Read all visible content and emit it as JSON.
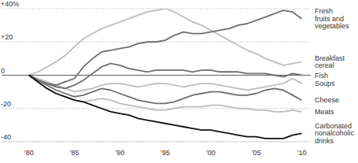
{
  "chart_data": {
    "type": "line",
    "x": [
      1980,
      1981,
      1982,
      1983,
      1984,
      1985,
      1986,
      1987,
      1988,
      1989,
      1990,
      1991,
      1992,
      1993,
      1994,
      1995,
      1996,
      1997,
      1998,
      1999,
      2000,
      2001,
      2002,
      2003,
      2004,
      2005,
      2006,
      2007,
      2008,
      2009,
      2010
    ],
    "xlim": [
      1977,
      2011
    ],
    "xticks": [
      {
        "value": 1980,
        "label": "’80"
      },
      {
        "value": 1985,
        "label": "’85"
      },
      {
        "value": 1990,
        "label": "’90"
      },
      {
        "value": 1995,
        "label": "’95"
      },
      {
        "value": 2000,
        "label": "’00"
      },
      {
        "value": 2005,
        "label": "’05"
      },
      {
        "value": 2010,
        "label": "’10"
      }
    ],
    "ylim": [
      -40,
      40
    ],
    "yticks": [
      {
        "value": 40,
        "label": "+40%"
      },
      {
        "value": 20,
        "label": "+20"
      },
      0,
      -20,
      -40
    ],
    "grid": true,
    "series": [
      {
        "name": "Fresh fruits and vegetables",
        "color": "#6e6e6e",
        "values": [
          0,
          -3,
          -5,
          -6,
          -4,
          -2,
          5,
          10,
          14,
          15,
          16,
          17,
          19,
          20,
          20,
          21,
          24,
          26,
          25,
          25,
          26,
          27,
          28,
          30,
          31,
          33,
          35,
          37,
          39,
          38,
          34
        ]
      },
      {
        "name": "Breakfast cereal",
        "color": "#bdbdbd",
        "values": [
          0,
          2,
          5,
          8,
          12,
          17,
          22,
          25,
          28,
          30,
          32,
          34,
          36,
          38,
          39,
          40,
          38,
          35,
          32,
          30,
          27,
          24,
          21,
          18,
          15,
          13,
          10,
          8,
          6,
          7,
          8
        ]
      },
      {
        "name": "Fish",
        "color": "#6e6e6e",
        "values": [
          0,
          -3,
          -5,
          -7,
          -8,
          -6,
          -3,
          1,
          5,
          7,
          6,
          4,
          3,
          2,
          3,
          3,
          3,
          3,
          2,
          3,
          3,
          2,
          2,
          2,
          1,
          1,
          1,
          0,
          -1,
          1,
          0
        ]
      },
      {
        "name": "Soups",
        "color": "#bdbdbd",
        "values": [
          0,
          -2,
          -4,
          -6,
          -8,
          -10,
          -9,
          -8,
          -6,
          -5,
          -5,
          -6,
          -7,
          -6,
          -5,
          -5,
          -6,
          -7,
          -6,
          -5,
          -5,
          -6,
          -7,
          -8,
          -9,
          -8,
          -7,
          -6,
          -5,
          -2,
          -5
        ]
      },
      {
        "name": "Cheese",
        "color": "#6e6e6e",
        "values": [
          0,
          -3,
          -6,
          -9,
          -11,
          -13,
          -12,
          -10,
          -8,
          -9,
          -11,
          -13,
          -15,
          -16,
          -17,
          -17,
          -16,
          -14,
          -12,
          -11,
          -10,
          -10,
          -11,
          -12,
          -12,
          -11,
          -9,
          -8,
          -9,
          -12,
          -15
        ]
      },
      {
        "name": "Meats",
        "color": "#bdbdbd",
        "values": [
          0,
          -4,
          -8,
          -11,
          -13,
          -15,
          -16,
          -15,
          -14,
          -15,
          -17,
          -18,
          -19,
          -20,
          -21,
          -21,
          -20,
          -19,
          -19,
          -19,
          -18,
          -18,
          -19,
          -20,
          -20,
          -21,
          -21,
          -22,
          -22,
          -21,
          -22
        ]
      },
      {
        "name": "Carbonated nonalcoholic drinks",
        "color": "#111111",
        "values": [
          0,
          -4,
          -8,
          -11,
          -13,
          -15,
          -16,
          -18,
          -20,
          -22,
          -23,
          -24,
          -26,
          -27,
          -28,
          -29,
          -30,
          -31,
          -32,
          -33,
          -33,
          -34,
          -35,
          -36,
          -37,
          -37,
          -38,
          -38,
          -38,
          -36,
          -35
        ]
      }
    ]
  }
}
